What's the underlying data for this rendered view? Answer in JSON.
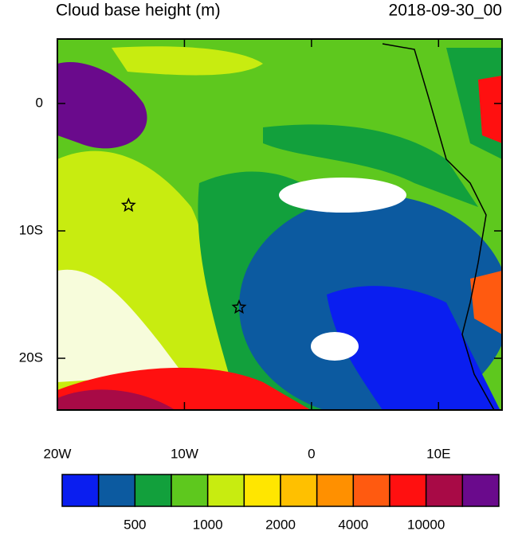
{
  "title": "Cloud base height (m)",
  "time_label": "2018-09-30_00",
  "map": {
    "xlim": [
      -20,
      15
    ],
    "ylim": [
      -24.06,
      5.06
    ],
    "xticks": [
      {
        "value": -20,
        "label": "20W"
      },
      {
        "value": -10,
        "label": "10W"
      },
      {
        "value": 0,
        "label": "0"
      },
      {
        "value": 10,
        "label": "10E"
      }
    ],
    "yticks": [
      {
        "value": 0,
        "label": "0"
      },
      {
        "value": -10,
        "label": "10S"
      },
      {
        "value": -20,
        "label": "20S"
      }
    ],
    "markers": [
      {
        "lon": -14.4,
        "lat": -8
      },
      {
        "lon": -5.7,
        "lat": -16
      }
    ]
  },
  "colorbar": {
    "colors": [
      "#0a1ef0",
      "#0c5aa0",
      "#12a03c",
      "#5ec81e",
      "#c8ec10",
      "#ffe600",
      "#ffc000",
      "#ff9000",
      "#ff5a10",
      "#ff1010",
      "#a80a46",
      "#6a0a8c"
    ],
    "labels": [
      "500",
      "1000",
      "2000",
      "4000",
      "10000"
    ]
  }
}
